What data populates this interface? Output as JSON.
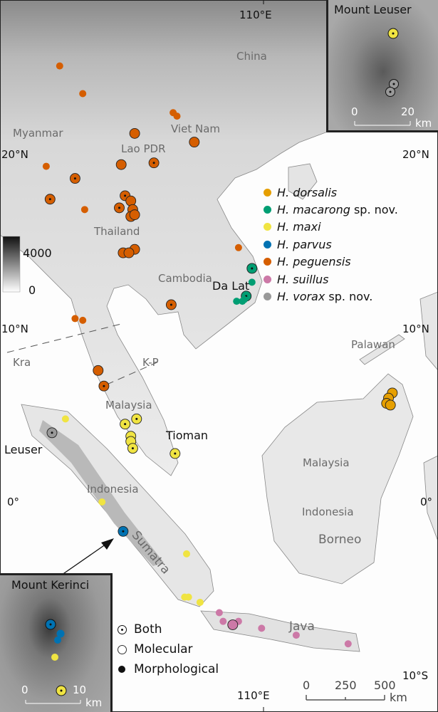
{
  "projection": {
    "lon_ticks": [
      "110°E"
    ],
    "lat_ticks": [
      "20°N",
      "10°N",
      "0°",
      "10°S"
    ]
  },
  "grid_labels": {
    "top_lon": "110°E",
    "bottom_lon": "110°E",
    "lat20_left": "20°N",
    "lat20_right": "20°N",
    "lat10_left": "10°N",
    "lat10_right": "10°N",
    "lat0_left": "0°",
    "lat0_right": "0°",
    "lat10s_right": "10°S"
  },
  "place_labels": {
    "china": "China",
    "myanmar": "Myanmar",
    "viet_nam": "Viet Nam",
    "lao": "Lao PDR",
    "thailand": "Thailand",
    "cambodia": "Cambodia",
    "da_lat": "Da Lat",
    "palawan": "Palawan",
    "kra": "Kra",
    "kp": "K-P",
    "malaysia_pen": "Malaysia",
    "tioman": "Tioman",
    "leuser": "Leuser",
    "indonesia_w": "Indonesia",
    "sumatra": "Sumatra",
    "malaysia_borneo": "Malaysia",
    "indonesia_borneo": "Indonesia",
    "borneo": "Borneo",
    "java": "Java"
  },
  "elevation_legend": {
    "max": "4000",
    "min": "0"
  },
  "species_legend": [
    {
      "genus": "H.",
      "epithet": "dorsalis",
      "suffix": "",
      "color": "#e69f00"
    },
    {
      "genus": "H.",
      "epithet": "macarong",
      "suffix": " sp. nov.",
      "color": "#009e73"
    },
    {
      "genus": "H.",
      "epithet": "maxi",
      "suffix": "",
      "color": "#f0e442"
    },
    {
      "genus": "H.",
      "epithet": "parvus",
      "suffix": "",
      "color": "#0072b2"
    },
    {
      "genus": "H.",
      "epithet": "peguensis",
      "suffix": "",
      "color": "#d55e00"
    },
    {
      "genus": "H.",
      "epithet": "suillus",
      "suffix": "",
      "color": "#cc79a7"
    },
    {
      "genus": "H.",
      "epithet": "vorax",
      "suffix": " sp. nov.",
      "color": "#999999"
    }
  ],
  "record_legend": [
    {
      "type": "both",
      "label": "Both"
    },
    {
      "type": "molecular",
      "label": "Molecular"
    },
    {
      "type": "morphological",
      "label": "Morphological"
    }
  ],
  "scale_bar": {
    "ticks": [
      "0",
      "250",
      "500"
    ],
    "unit": "km"
  },
  "inset_leuser": {
    "title": "Mount Leuser",
    "ticks": [
      "0",
      "20"
    ],
    "unit": "km"
  },
  "inset_kerinci": {
    "title": "Mount Kerinci",
    "ticks": [
      "0",
      "10"
    ],
    "unit": "km"
  },
  "records": [
    {
      "sp": "peguensis",
      "lon": 99.4,
      "lat": 25.2,
      "t": "morph"
    },
    {
      "sp": "peguensis",
      "lon": 100.6,
      "lat": 23.6,
      "t": "morph"
    },
    {
      "sp": "peguensis",
      "lon": 105.3,
      "lat": 22.5,
      "t": "morph"
    },
    {
      "sp": "peguensis",
      "lon": 105.5,
      "lat": 22.3,
      "t": "morph"
    },
    {
      "sp": "peguensis",
      "lon": 103.3,
      "lat": 21.3,
      "t": "mol"
    },
    {
      "sp": "peguensis",
      "lon": 106.4,
      "lat": 20.8,
      "t": "mol"
    },
    {
      "sp": "peguensis",
      "lon": 98.7,
      "lat": 19.4,
      "t": "morph"
    },
    {
      "sp": "peguensis",
      "lon": 102.6,
      "lat": 19.5,
      "t": "mol"
    },
    {
      "sp": "peguensis",
      "lon": 104.3,
      "lat": 19.6,
      "t": "both"
    },
    {
      "sp": "peguensis",
      "lon": 100.2,
      "lat": 18.7,
      "t": "both"
    },
    {
      "sp": "peguensis",
      "lon": 98.9,
      "lat": 17.5,
      "t": "both"
    },
    {
      "sp": "peguensis",
      "lon": 100.7,
      "lat": 16.9,
      "t": "morph"
    },
    {
      "sp": "peguensis",
      "lon": 102.8,
      "lat": 17.7,
      "t": "both"
    },
    {
      "sp": "peguensis",
      "lon": 103.1,
      "lat": 17.4,
      "t": "mol"
    },
    {
      "sp": "peguensis",
      "lon": 102.5,
      "lat": 17.0,
      "t": "both"
    },
    {
      "sp": "peguensis",
      "lon": 103.2,
      "lat": 16.9,
      "t": "mol"
    },
    {
      "sp": "peguensis",
      "lon": 103.1,
      "lat": 16.5,
      "t": "mol"
    },
    {
      "sp": "peguensis",
      "lon": 103.3,
      "lat": 16.6,
      "t": "mol"
    },
    {
      "sp": "peguensis",
      "lon": 102.7,
      "lat": 14.4,
      "t": "mol"
    },
    {
      "sp": "peguensis",
      "lon": 103.3,
      "lat": 14.6,
      "t": "mol"
    },
    {
      "sp": "peguensis",
      "lon": 103.0,
      "lat": 14.4,
      "t": "mol"
    },
    {
      "sp": "peguensis",
      "lon": 108.7,
      "lat": 14.7,
      "t": "morph"
    },
    {
      "sp": "peguensis",
      "lon": 105.2,
      "lat": 11.4,
      "t": "both"
    },
    {
      "sp": "peguensis",
      "lon": 100.2,
      "lat": 10.6,
      "t": "morph"
    },
    {
      "sp": "peguensis",
      "lon": 100.6,
      "lat": 10.5,
      "t": "morph"
    },
    {
      "sp": "peguensis",
      "lon": 101.4,
      "lat": 7.6,
      "t": "mol"
    },
    {
      "sp": "peguensis",
      "lon": 101.7,
      "lat": 6.7,
      "t": "both"
    },
    {
      "sp": "macarong",
      "lon": 109.4,
      "lat": 13.5,
      "t": "both"
    },
    {
      "sp": "macarong",
      "lon": 109.4,
      "lat": 12.7,
      "t": "morph"
    },
    {
      "sp": "macarong",
      "lon": 109.1,
      "lat": 11.9,
      "t": "both"
    },
    {
      "sp": "macarong",
      "lon": 109.0,
      "lat": 11.7,
      "t": "morph"
    },
    {
      "sp": "macarong",
      "lon": 108.6,
      "lat": 11.6,
      "t": "morph"
    },
    {
      "sp": "macarong",
      "lon": 108.9,
      "lat": 11.6,
      "t": "morph"
    },
    {
      "sp": "maxi",
      "lon": 99.7,
      "lat": 4.8,
      "t": "morph"
    },
    {
      "sp": "maxi",
      "lon": 103.4,
      "lat": 4.8,
      "t": "both"
    },
    {
      "sp": "maxi",
      "lon": 102.8,
      "lat": 4.5,
      "t": "both"
    },
    {
      "sp": "maxi",
      "lon": 103.1,
      "lat": 3.8,
      "t": "mol"
    },
    {
      "sp": "maxi",
      "lon": 103.1,
      "lat": 3.5,
      "t": "mol"
    },
    {
      "sp": "maxi",
      "lon": 103.2,
      "lat": 3.1,
      "t": "both"
    },
    {
      "sp": "maxi",
      "lon": 105.4,
      "lat": 2.8,
      "t": "both"
    },
    {
      "sp": "maxi",
      "lon": 101.6,
      "lat": 0.0,
      "t": "morph"
    },
    {
      "sp": "maxi",
      "lon": 106.0,
      "lat": -3.0,
      "t": "morph"
    },
    {
      "sp": "maxi",
      "lon": 105.9,
      "lat": -5.5,
      "t": "morph"
    },
    {
      "sp": "maxi",
      "lon": 106.1,
      "lat": -5.5,
      "t": "morph"
    },
    {
      "sp": "maxi",
      "lon": 106.7,
      "lat": -5.8,
      "t": "morph"
    },
    {
      "sp": "parvus",
      "lon": 102.7,
      "lat": -1.7,
      "t": "both"
    },
    {
      "sp": "vorax",
      "lon": 99.0,
      "lat": 4.0,
      "t": "both"
    },
    {
      "sp": "dorsalis",
      "lon": 116.7,
      "lat": 6.3,
      "t": "mol"
    },
    {
      "sp": "dorsalis",
      "lon": 116.5,
      "lat": 6.0,
      "t": "mol"
    },
    {
      "sp": "dorsalis",
      "lon": 116.4,
      "lat": 5.7,
      "t": "both"
    },
    {
      "sp": "dorsalis",
      "lon": 116.6,
      "lat": 5.6,
      "t": "mol"
    },
    {
      "sp": "suillus",
      "lon": 107.7,
      "lat": -6.4,
      "t": "morph"
    },
    {
      "sp": "suillus",
      "lon": 107.9,
      "lat": -6.9,
      "t": "morph"
    },
    {
      "sp": "suillus",
      "lon": 108.7,
      "lat": -6.9,
      "t": "morph"
    },
    {
      "sp": "suillus",
      "lon": 108.4,
      "lat": -7.1,
      "t": "mol"
    },
    {
      "sp": "suillus",
      "lon": 109.9,
      "lat": -7.3,
      "t": "morph"
    },
    {
      "sp": "suillus",
      "lon": 111.7,
      "lat": -7.7,
      "t": "morph"
    },
    {
      "sp": "suillus",
      "lon": 114.4,
      "lat": -8.2,
      "t": "morph"
    }
  ]
}
